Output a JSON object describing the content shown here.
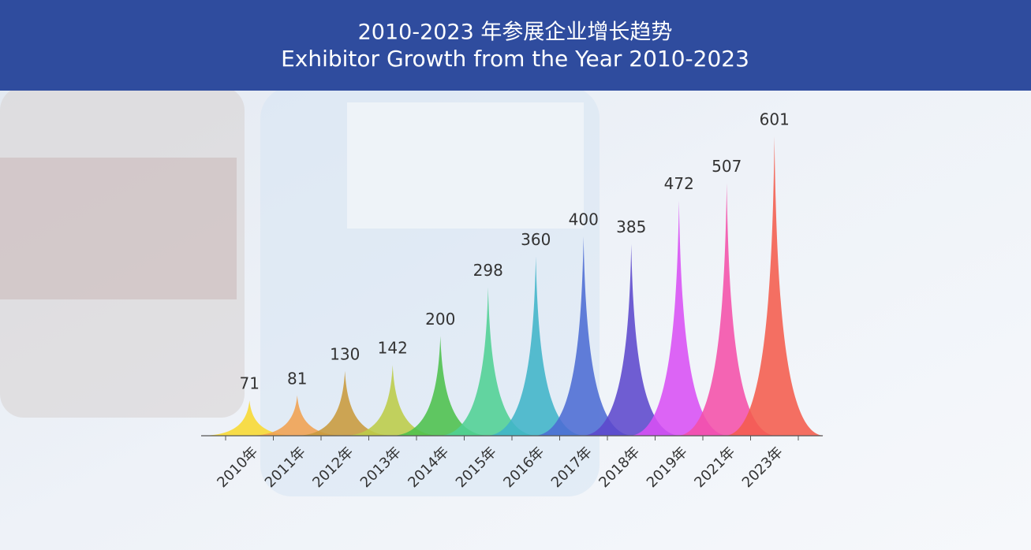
{
  "chart_data": {
    "type": "spike",
    "title": "2010-2023 年参展企业增长趋势",
    "subtitle": "Exhibitor Growth from the Year 2010-2023",
    "categories": [
      "2010年",
      "2011年",
      "2012年",
      "2013年",
      "2014年",
      "2015年",
      "2016年",
      "2017年",
      "2018年",
      "2019年",
      "2021年",
      "2023年"
    ],
    "values": [
      71,
      81,
      130,
      142,
      200,
      298,
      360,
      400,
      385,
      472,
      507,
      601
    ],
    "colors": [
      "#f8d830",
      "#f0a050",
      "#c89a3c",
      "#bccc48",
      "#4cc04c",
      "#50d094",
      "#40b4c8",
      "#4c6cd4",
      "#5c48cc",
      "#d850f4",
      "#f450a8",
      "#f45c4c"
    ],
    "ylim": [
      0,
      601
    ]
  }
}
